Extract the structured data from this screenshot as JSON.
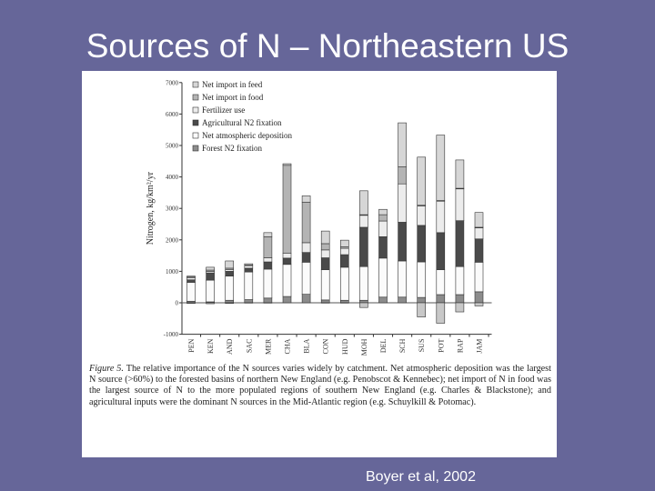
{
  "slide": {
    "title": "Sources of N – Northeastern US",
    "citation": "Boyer et al, 2002"
  },
  "figure": {
    "caption_label": "Figure 5.",
    "caption_text": "The relative importance of the N sources varies widely by catchment. Net atmospheric deposition was the largest N source (>60%) to the forested basins of northern New England (e.g. Penobscot & Kennebec); net import of N in food was the largest source of N to the more populated regions of southern New England (e.g. Charles & Blackstone); and agricultural inputs were the dominant N sources in the Mid-Atlantic region (e.g. Schuylkill & Potomac)."
  },
  "chart_data": {
    "type": "bar",
    "stacked": true,
    "ylabel": "Nitrogen, kg/km²/yr",
    "ylim": [
      -1000,
      7000
    ],
    "yticks": [
      "-1000",
      "0",
      "1000",
      "2000",
      "3000",
      "4000",
      "5000",
      "6000",
      "7000"
    ],
    "legend_placement": "top-left",
    "categories": [
      "PEN",
      "KEN",
      "AND",
      "SAC",
      "MER",
      "CHA",
      "BLA",
      "CON",
      "HUD",
      "MOH",
      "DEL",
      "SCH",
      "SUS",
      "POT",
      "RAP",
      "JAM"
    ],
    "series": [
      {
        "name": "Forest N2 fixation",
        "color": "#8c8c8c",
        "values": [
          50,
          30,
          80,
          100,
          150,
          200,
          270,
          90,
          80,
          80,
          180,
          180,
          170,
          260,
          260,
          350
        ]
      },
      {
        "name": "Net atmospheric deposition",
        "color": "#fbfbfb",
        "values": [
          600,
          690,
          770,
          880,
          920,
          1020,
          1020,
          960,
          1050,
          1070,
          1240,
          1150,
          1130,
          790,
          890,
          940
        ]
      },
      {
        "name": "Agricultural N2 fixation",
        "color": "#4a4a4a",
        "values": [
          80,
          230,
          150,
          120,
          230,
          200,
          310,
          380,
          400,
          1250,
          680,
          1230,
          1160,
          1180,
          1460,
          740
        ]
      },
      {
        "name": "Fertilizer use",
        "color": "#ececec",
        "values": [
          70,
          50,
          50,
          80,
          130,
          160,
          310,
          250,
          200,
          380,
          500,
          1220,
          620,
          1000,
          1010,
          350
        ]
      },
      {
        "name": "Net import in food",
        "color": "#b4b4b4",
        "values": [
          20,
          40,
          50,
          20,
          670,
          2790,
          1290,
          200,
          50,
          20,
          200,
          540,
          20,
          20,
          20,
          20
        ]
      },
      {
        "name": "Net import in feed",
        "color": "#d6d6d6",
        "values": [
          30,
          90,
          230,
          40,
          130,
          50,
          200,
          400,
          210,
          760,
          170,
          1400,
          1530,
          2080,
          900,
          470
        ]
      }
    ],
    "negative_values": [
      -20,
      -30,
      -20,
      -10,
      -10,
      0,
      0,
      -10,
      -10,
      -150,
      0,
      0,
      -450,
      -650,
      -290,
      -100
    ],
    "negative_color": "#c8c8c8"
  }
}
